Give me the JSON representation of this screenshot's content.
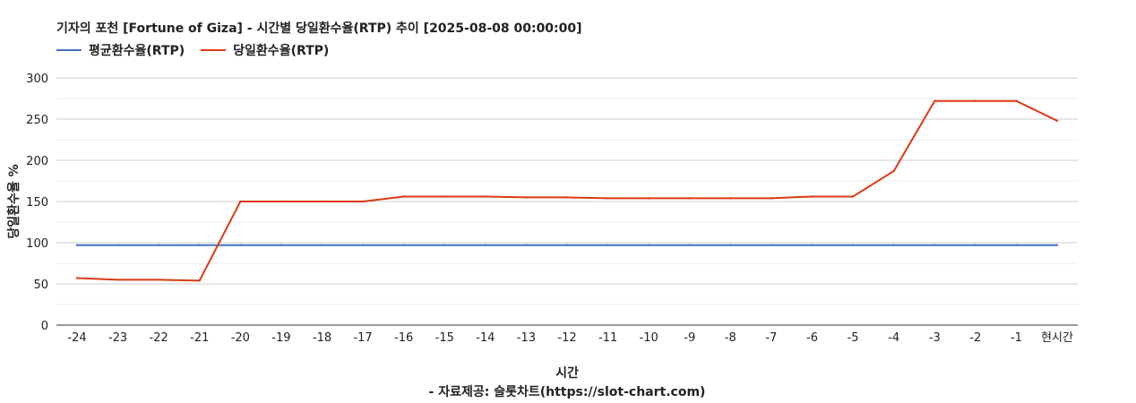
{
  "chart_data": {
    "type": "line",
    "title": "기자의 포천 [Fortune of Giza] - 시간별 당일환수율(RTP) 추이 [2025-08-08 00:00:00]",
    "xlabel": "시간",
    "ylabel": "당일환수율 %",
    "source": "- 자료제공: 슬롯차트(https://slot-chart.com)",
    "categories": [
      "-24",
      "-23",
      "-22",
      "-21",
      "-20",
      "-19",
      "-18",
      "-17",
      "-16",
      "-15",
      "-14",
      "-13",
      "-12",
      "-11",
      "-10",
      "-9",
      "-8",
      "-7",
      "-6",
      "-5",
      "-4",
      "-3",
      "-2",
      "-1",
      "현시간"
    ],
    "ylim": [
      0,
      300
    ],
    "yticks": [
      0,
      50,
      100,
      150,
      200,
      250,
      300
    ],
    "grid": true,
    "legend_position": "top-left",
    "series": [
      {
        "name": "평균환수율(RTP)",
        "color": "#4472c4",
        "values": [
          97,
          97,
          97,
          97,
          97,
          97,
          97,
          97,
          97,
          97,
          97,
          97,
          97,
          97,
          97,
          97,
          97,
          97,
          97,
          97,
          97,
          97,
          97,
          97,
          97
        ]
      },
      {
        "name": "당일환수율(RTP)",
        "color": "#dc3912",
        "values": [
          57,
          55,
          55,
          54,
          150,
          150,
          150,
          150,
          156,
          156,
          156,
          155,
          155,
          154,
          154,
          154,
          154,
          154,
          156,
          156,
          187,
          272,
          272,
          272,
          248
        ]
      }
    ]
  }
}
